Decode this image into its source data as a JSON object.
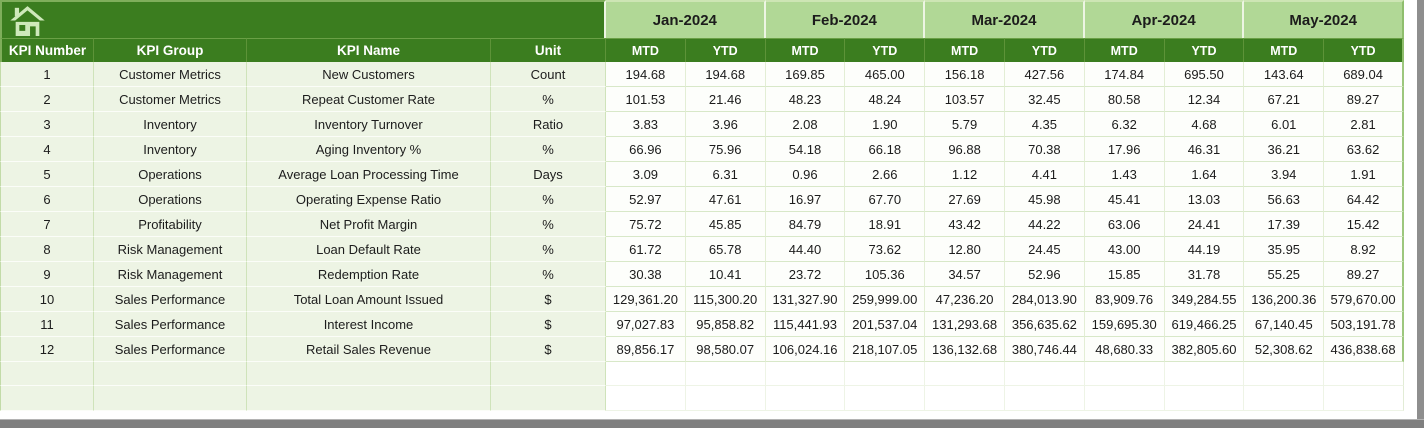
{
  "theme": {
    "dark_green": "#3b7d1f",
    "light_green": "#b1d896",
    "row_tint_green": "#edf4e4",
    "grid_line_green": "#cfe3ba",
    "icon_pale_green": "#cfe9bb",
    "edge_gray": "#7f7f7f"
  },
  "banner": {
    "home_icon": "home-icon"
  },
  "table": {
    "left_headers": [
      "KPI Number",
      "KPI Group",
      "KPI Name",
      "Unit"
    ],
    "months": [
      "Jan-2024",
      "Feb-2024",
      "Mar-2024",
      "Apr-2024",
      "May-2024"
    ],
    "sub_headers": [
      "MTD",
      "YTD"
    ],
    "empty_row_count": 2,
    "rows": [
      {
        "number": "1",
        "group": "Customer Metrics",
        "name": "New Customers",
        "unit": "Count",
        "values": [
          "194.68",
          "194.68",
          "169.85",
          "465.00",
          "156.18",
          "427.56",
          "174.84",
          "695.50",
          "143.64",
          "689.04"
        ]
      },
      {
        "number": "2",
        "group": "Customer Metrics",
        "name": "Repeat Customer Rate",
        "unit": "%",
        "values": [
          "101.53",
          "21.46",
          "48.23",
          "48.24",
          "103.57",
          "32.45",
          "80.58",
          "12.34",
          "67.21",
          "89.27"
        ]
      },
      {
        "number": "3",
        "group": "Inventory",
        "name": "Inventory Turnover",
        "unit": "Ratio",
        "values": [
          "3.83",
          "3.96",
          "2.08",
          "1.90",
          "5.79",
          "4.35",
          "6.32",
          "4.68",
          "6.01",
          "2.81"
        ]
      },
      {
        "number": "4",
        "group": "Inventory",
        "name": "Aging Inventory %",
        "unit": "%",
        "values": [
          "66.96",
          "75.96",
          "54.18",
          "66.18",
          "96.88",
          "70.38",
          "17.96",
          "46.31",
          "36.21",
          "63.62"
        ]
      },
      {
        "number": "5",
        "group": "Operations",
        "name": "Average Loan Processing Time",
        "unit": "Days",
        "values": [
          "3.09",
          "6.31",
          "0.96",
          "2.66",
          "1.12",
          "4.41",
          "1.43",
          "1.64",
          "3.94",
          "1.91"
        ]
      },
      {
        "number": "6",
        "group": "Operations",
        "name": "Operating Expense Ratio",
        "unit": "%",
        "values": [
          "52.97",
          "47.61",
          "16.97",
          "67.70",
          "27.69",
          "45.98",
          "45.41",
          "13.03",
          "56.63",
          "64.42"
        ]
      },
      {
        "number": "7",
        "group": "Profitability",
        "name": "Net Profit Margin",
        "unit": "%",
        "values": [
          "75.72",
          "45.85",
          "84.79",
          "18.91",
          "43.42",
          "44.22",
          "63.06",
          "24.41",
          "17.39",
          "15.42"
        ]
      },
      {
        "number": "8",
        "group": "Risk Management",
        "name": "Loan Default Rate",
        "unit": "%",
        "values": [
          "61.72",
          "65.78",
          "44.40",
          "73.62",
          "12.80",
          "24.45",
          "43.00",
          "44.19",
          "35.95",
          "8.92"
        ]
      },
      {
        "number": "9",
        "group": "Risk Management",
        "name": "Redemption Rate",
        "unit": "%",
        "values": [
          "30.38",
          "10.41",
          "23.72",
          "105.36",
          "34.57",
          "52.96",
          "15.85",
          "31.78",
          "55.25",
          "89.27"
        ]
      },
      {
        "number": "10",
        "group": "Sales Performance",
        "name": "Total Loan Amount Issued",
        "unit": "$",
        "values": [
          "129,361.20",
          "115,300.20",
          "131,327.90",
          "259,999.00",
          "47,236.20",
          "284,013.90",
          "83,909.76",
          "349,284.55",
          "136,200.36",
          "579,670.00"
        ]
      },
      {
        "number": "11",
        "group": "Sales Performance",
        "name": "Interest Income",
        "unit": "$",
        "values": [
          "97,027.83",
          "95,858.82",
          "115,441.93",
          "201,537.04",
          "131,293.68",
          "356,635.62",
          "159,695.30",
          "619,466.25",
          "67,140.45",
          "503,191.78"
        ]
      },
      {
        "number": "12",
        "group": "Sales Performance",
        "name": "Retail Sales Revenue",
        "unit": "$",
        "values": [
          "89,856.17",
          "98,580.07",
          "106,024.16",
          "218,107.05",
          "136,132.68",
          "380,746.44",
          "48,680.33",
          "382,805.60",
          "52,308.62",
          "436,838.68"
        ]
      }
    ]
  }
}
